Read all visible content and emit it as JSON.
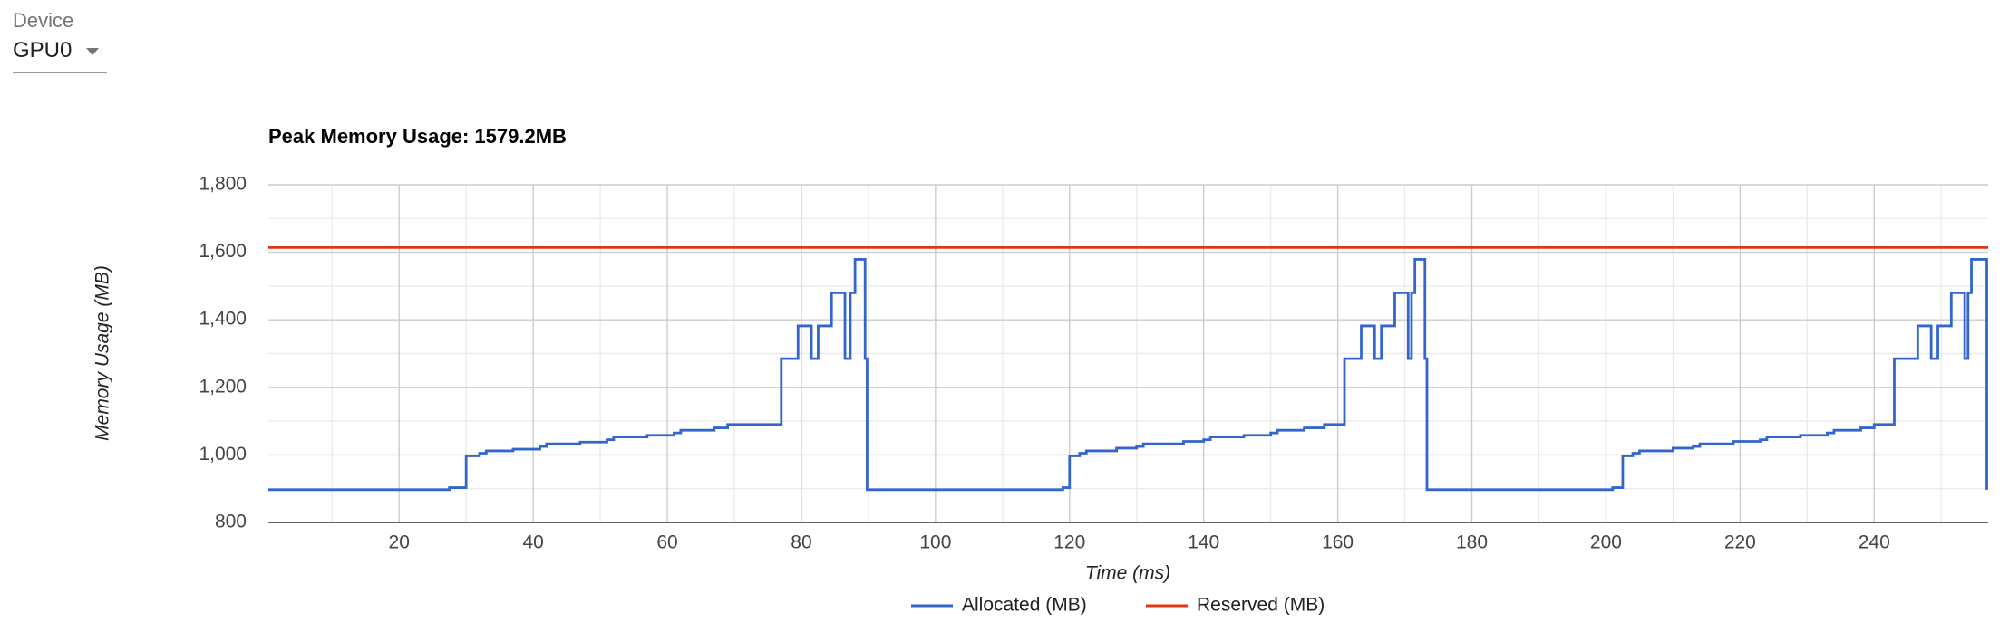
{
  "device_selector": {
    "label": "Device",
    "value": "GPU0"
  },
  "chart_data": {
    "type": "step-line",
    "title": "Peak Memory Usage: 1579.2MB",
    "x_label": "Time (ms)",
    "y_label": "Memory Usage (MB)",
    "xlim": [
      0.5,
      257
    ],
    "ylim": [
      800,
      1800
    ],
    "xticks": [
      20,
      40,
      60,
      80,
      100,
      120,
      140,
      160,
      180,
      200,
      220,
      240
    ],
    "yticks": [
      800,
      {
        "value": 1000,
        "label": "1,000"
      },
      {
        "value": 1200,
        "label": "1,200"
      },
      {
        "value": 1400,
        "label": "1,400"
      },
      {
        "value": 1600,
        "label": "1,600"
      },
      {
        "value": 1800,
        "label": "1,800"
      }
    ],
    "x_minor_ticks": [
      10,
      30,
      50,
      70,
      90,
      110,
      130,
      150,
      170,
      190,
      210,
      230,
      250
    ],
    "y_minor_ticks": [
      900,
      1100,
      1300,
      1500,
      1700
    ],
    "grid": true,
    "legend": "bottom",
    "series": [
      {
        "name": "Allocated (MB)",
        "color": "#3366cc",
        "x": [
          0.5,
          27.5,
          30,
          32,
          33,
          37,
          41,
          42,
          47,
          51,
          52,
          57,
          61,
          62,
          67,
          69,
          77,
          79.5,
          81.5,
          82.5,
          84.5,
          86.5,
          87.3,
          88,
          89.5,
          89.8,
          119,
          120,
          121.5,
          122.5,
          127,
          130,
          131,
          137,
          140,
          141,
          146,
          150,
          151,
          155,
          158,
          161,
          163.5,
          165.5,
          166.5,
          168.5,
          170.5,
          171,
          171.5,
          173,
          173.3,
          201,
          202.5,
          204,
          205,
          210,
          213,
          214,
          219,
          223,
          224,
          229,
          233,
          234,
          238,
          240,
          243,
          246.5,
          248.5,
          249.5,
          251.5,
          253.5,
          254,
          254.5,
          256.8
        ],
        "values": [
          897,
          903,
          997,
          1005,
          1012,
          1017,
          1025,
          1033,
          1038,
          1045,
          1053,
          1058,
          1065,
          1073,
          1080,
          1090,
          1285,
          1382,
          1285,
          1382,
          1480,
          1285,
          1480,
          1579,
          1285,
          897,
          903,
          997,
          1005,
          1012,
          1020,
          1025,
          1033,
          1040,
          1045,
          1053,
          1058,
          1065,
          1073,
          1080,
          1090,
          1285,
          1382,
          1285,
          1382,
          1480,
          1285,
          1480,
          1579,
          1285,
          897,
          903,
          997,
          1005,
          1012,
          1020,
          1025,
          1033,
          1040,
          1045,
          1053,
          1058,
          1065,
          1073,
          1080,
          1090,
          1285,
          1382,
          1285,
          1382,
          1480,
          1285,
          1480,
          1579,
          897
        ]
      },
      {
        "name": "Reserved (MB)",
        "color": "#dc3912",
        "x": [
          0.5,
          257
        ],
        "values": [
          1614,
          1614
        ]
      }
    ]
  }
}
